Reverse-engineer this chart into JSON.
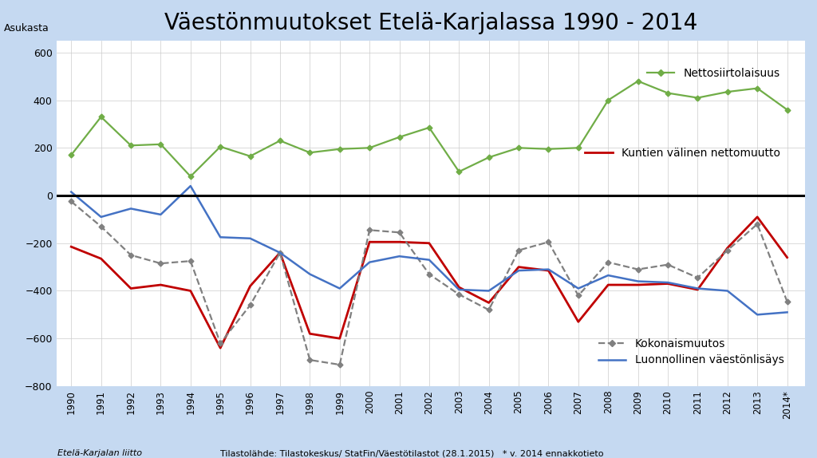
{
  "title": "Väestönmuutokset Etelä-Karjalassa 1990 - 2014",
  "ylabel": "Asukasta",
  "years": [
    1990,
    1991,
    1992,
    1993,
    1994,
    1995,
    1996,
    1997,
    1998,
    1999,
    2000,
    2001,
    2002,
    2003,
    2004,
    2005,
    2006,
    2007,
    2008,
    2009,
    2010,
    2011,
    2012,
    2013,
    2014
  ],
  "year_labels": [
    "1990",
    "1991",
    "1992",
    "1993",
    "1994",
    "1995",
    "1996",
    "1997",
    "1998",
    "1999",
    "2000",
    "2001",
    "2002",
    "2003",
    "2004",
    "2005",
    "2006",
    "2007",
    "2008",
    "2009",
    "2010",
    "2011",
    "2012",
    "2013",
    "2014*"
  ],
  "nettosiirtolaisuus": [
    170,
    330,
    210,
    215,
    80,
    205,
    165,
    230,
    180,
    195,
    200,
    245,
    285,
    100,
    160,
    200,
    195,
    200,
    400,
    480,
    430,
    410,
    435,
    450,
    360
  ],
  "kuntien_nettomuutto": [
    -215,
    -265,
    -390,
    -375,
    -400,
    -640,
    -380,
    -240,
    -580,
    -600,
    -195,
    -195,
    -200,
    -385,
    -450,
    -300,
    -315,
    -530,
    -375,
    -375,
    -370,
    -395,
    -220,
    -90,
    -260
  ],
  "kokonaismuutos": [
    -25,
    -130,
    -250,
    -285,
    -275,
    -620,
    -460,
    -240,
    -690,
    -710,
    -145,
    -155,
    -330,
    -415,
    -480,
    -230,
    -195,
    -420,
    -280,
    -310,
    -290,
    -345,
    -230,
    -120,
    -445
  ],
  "luonnollinen_vaestolisays": [
    15,
    -90,
    -55,
    -80,
    40,
    -175,
    -180,
    -240,
    -330,
    -390,
    -280,
    -255,
    -270,
    -395,
    -400,
    -315,
    -310,
    -390,
    -335,
    -360,
    -365,
    -390,
    -400,
    -500,
    -490
  ],
  "legend_nettosiirtolaisuus": "Nettosiirtolaisuus",
  "legend_kuntien": "Kuntien välinen nettomuutto",
  "legend_kokonais": "Kokonaismuutos",
  "legend_luonnollinen": "Luonnollinen väestönlisäys",
  "color_netto": "#70AD47",
  "color_kuntien": "#C00000",
  "color_kokonais": "#808080",
  "color_luonnollinen": "#4472C4",
  "ylim_min": -800,
  "ylim_max": 650,
  "yticks": [
    -800,
    -600,
    -400,
    -200,
    0,
    200,
    400,
    600
  ],
  "footnote_left": "Etelä-Karjalan liitto",
  "footnote_right": "Tilastolähde: Tilastokeskus/ StatFin/Väestötilastot (28.1.2015)   * v. 2014 ennakkotieto",
  "background_color": "#C5D9F1",
  "plot_bg_color": "#FFFFFF",
  "title_fontsize": 20,
  "label_fontsize": 9
}
